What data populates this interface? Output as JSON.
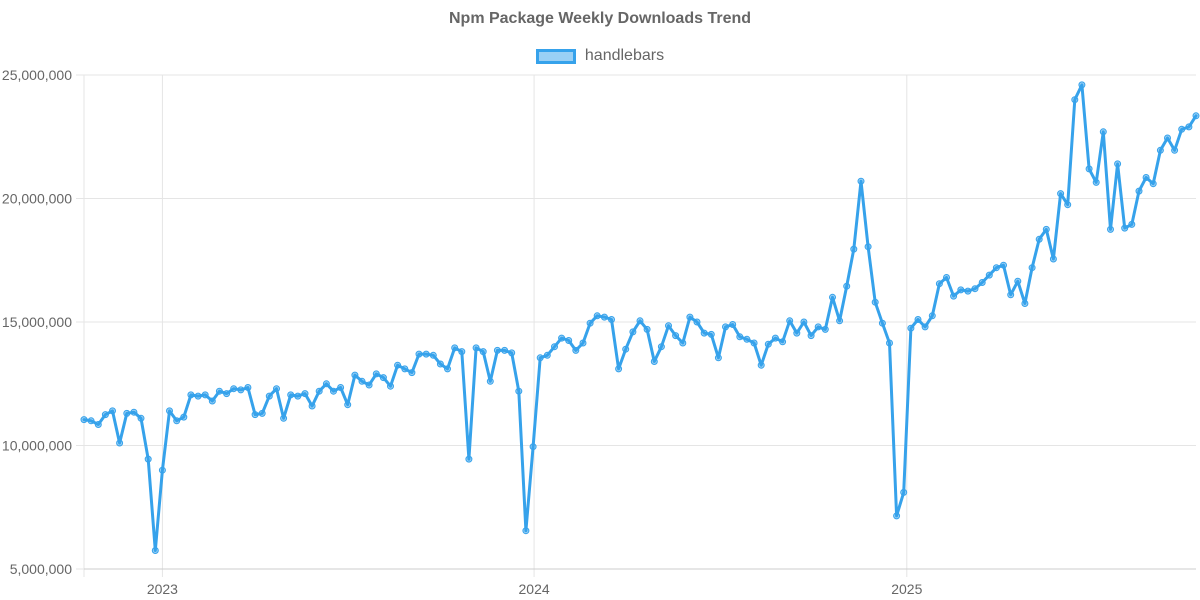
{
  "chart_data": {
    "type": "line",
    "title": "Npm Package Weekly Downloads Trend",
    "legend": {
      "placement": "top"
    },
    "grid": true,
    "colors": {
      "line": "#36a2eb",
      "fill": "rgba(54,162,235,0.5)",
      "grid": "#e5e5e5",
      "text": "#666666"
    },
    "x_axis": {
      "type": "time",
      "range": [
        "2022-10-16",
        "2025-09-21"
      ],
      "ticks": [
        {
          "value": "2023-01-01",
          "label": "2023"
        },
        {
          "value": "2024-01-01",
          "label": "2024"
        },
        {
          "value": "2025-01-01",
          "label": "2025"
        }
      ]
    },
    "y_axis": {
      "range": [
        5000000,
        25000000
      ],
      "ticks": [
        {
          "value": 5000000,
          "label": "5,000,000"
        },
        {
          "value": 10000000,
          "label": "10,000,000"
        },
        {
          "value": 15000000,
          "label": "15,000,000"
        },
        {
          "value": 20000000,
          "label": "20,000,000"
        },
        {
          "value": 25000000,
          "label": "25,000,000"
        }
      ]
    },
    "series": [
      {
        "name": "handlebars",
        "points": [
          {
            "x": "2022-10-16",
            "y": 11050000
          },
          {
            "x": "2022-10-23",
            "y": 11000000
          },
          {
            "x": "2022-10-30",
            "y": 10850000
          },
          {
            "x": "2022-11-06",
            "y": 11250000
          },
          {
            "x": "2022-11-13",
            "y": 11400000
          },
          {
            "x": "2022-11-20",
            "y": 10100000
          },
          {
            "x": "2022-11-27",
            "y": 11300000
          },
          {
            "x": "2022-12-04",
            "y": 11350000
          },
          {
            "x": "2022-12-11",
            "y": 11100000
          },
          {
            "x": "2022-12-18",
            "y": 9450000
          },
          {
            "x": "2022-12-25",
            "y": 5750000
          },
          {
            "x": "2023-01-01",
            "y": 9000000
          },
          {
            "x": "2023-01-08",
            "y": 11400000
          },
          {
            "x": "2023-01-15",
            "y": 11000000
          },
          {
            "x": "2023-01-22",
            "y": 11150000
          },
          {
            "x": "2023-01-29",
            "y": 12050000
          },
          {
            "x": "2023-02-05",
            "y": 12000000
          },
          {
            "x": "2023-02-12",
            "y": 12050000
          },
          {
            "x": "2023-02-19",
            "y": 11800000
          },
          {
            "x": "2023-02-26",
            "y": 12200000
          },
          {
            "x": "2023-03-05",
            "y": 12100000
          },
          {
            "x": "2023-03-12",
            "y": 12300000
          },
          {
            "x": "2023-03-19",
            "y": 12250000
          },
          {
            "x": "2023-03-26",
            "y": 12350000
          },
          {
            "x": "2023-04-02",
            "y": 11250000
          },
          {
            "x": "2023-04-09",
            "y": 11300000
          },
          {
            "x": "2023-04-16",
            "y": 12000000
          },
          {
            "x": "2023-04-23",
            "y": 12300000
          },
          {
            "x": "2023-04-30",
            "y": 11100000
          },
          {
            "x": "2023-05-07",
            "y": 12050000
          },
          {
            "x": "2023-05-14",
            "y": 12000000
          },
          {
            "x": "2023-05-21",
            "y": 12100000
          },
          {
            "x": "2023-05-28",
            "y": 11600000
          },
          {
            "x": "2023-06-04",
            "y": 12200000
          },
          {
            "x": "2023-06-11",
            "y": 12500000
          },
          {
            "x": "2023-06-18",
            "y": 12200000
          },
          {
            "x": "2023-06-25",
            "y": 12350000
          },
          {
            "x": "2023-07-02",
            "y": 11650000
          },
          {
            "x": "2023-07-09",
            "y": 12850000
          },
          {
            "x": "2023-07-16",
            "y": 12600000
          },
          {
            "x": "2023-07-23",
            "y": 12450000
          },
          {
            "x": "2023-07-30",
            "y": 12900000
          },
          {
            "x": "2023-08-06",
            "y": 12750000
          },
          {
            "x": "2023-08-13",
            "y": 12400000
          },
          {
            "x": "2023-08-20",
            "y": 13250000
          },
          {
            "x": "2023-08-27",
            "y": 13100000
          },
          {
            "x": "2023-09-03",
            "y": 12950000
          },
          {
            "x": "2023-09-10",
            "y": 13700000
          },
          {
            "x": "2023-09-17",
            "y": 13700000
          },
          {
            "x": "2023-09-24",
            "y": 13650000
          },
          {
            "x": "2023-10-01",
            "y": 13300000
          },
          {
            "x": "2023-10-08",
            "y": 13100000
          },
          {
            "x": "2023-10-15",
            "y": 13950000
          },
          {
            "x": "2023-10-22",
            "y": 13800000
          },
          {
            "x": "2023-10-29",
            "y": 9450000
          },
          {
            "x": "2023-11-05",
            "y": 13950000
          },
          {
            "x": "2023-11-12",
            "y": 13800000
          },
          {
            "x": "2023-11-19",
            "y": 12600000
          },
          {
            "x": "2023-11-26",
            "y": 13850000
          },
          {
            "x": "2023-12-03",
            "y": 13850000
          },
          {
            "x": "2023-12-10",
            "y": 13750000
          },
          {
            "x": "2023-12-17",
            "y": 12200000
          },
          {
            "x": "2023-12-24",
            "y": 6550000
          },
          {
            "x": "2023-12-31",
            "y": 9950000
          },
          {
            "x": "2024-01-07",
            "y": 13550000
          },
          {
            "x": "2024-01-14",
            "y": 13650000
          },
          {
            "x": "2024-01-21",
            "y": 14000000
          },
          {
            "x": "2024-01-28",
            "y": 14350000
          },
          {
            "x": "2024-02-04",
            "y": 14250000
          },
          {
            "x": "2024-02-11",
            "y": 13850000
          },
          {
            "x": "2024-02-18",
            "y": 14150000
          },
          {
            "x": "2024-02-25",
            "y": 14950000
          },
          {
            "x": "2024-03-03",
            "y": 15250000
          },
          {
            "x": "2024-03-10",
            "y": 15200000
          },
          {
            "x": "2024-03-17",
            "y": 15100000
          },
          {
            "x": "2024-03-24",
            "y": 13100000
          },
          {
            "x": "2024-03-31",
            "y": 13900000
          },
          {
            "x": "2024-04-07",
            "y": 14600000
          },
          {
            "x": "2024-04-14",
            "y": 15050000
          },
          {
            "x": "2024-04-21",
            "y": 14700000
          },
          {
            "x": "2024-04-28",
            "y": 13400000
          },
          {
            "x": "2024-05-05",
            "y": 14000000
          },
          {
            "x": "2024-05-12",
            "y": 14850000
          },
          {
            "x": "2024-05-19",
            "y": 14450000
          },
          {
            "x": "2024-05-26",
            "y": 14150000
          },
          {
            "x": "2024-06-02",
            "y": 15200000
          },
          {
            "x": "2024-06-09",
            "y": 15000000
          },
          {
            "x": "2024-06-16",
            "y": 14550000
          },
          {
            "x": "2024-06-23",
            "y": 14500000
          },
          {
            "x": "2024-06-30",
            "y": 13550000
          },
          {
            "x": "2024-07-07",
            "y": 14800000
          },
          {
            "x": "2024-07-14",
            "y": 14900000
          },
          {
            "x": "2024-07-21",
            "y": 14400000
          },
          {
            "x": "2024-07-28",
            "y": 14300000
          },
          {
            "x": "2024-08-04",
            "y": 14150000
          },
          {
            "x": "2024-08-11",
            "y": 13250000
          },
          {
            "x": "2024-08-18",
            "y": 14100000
          },
          {
            "x": "2024-08-25",
            "y": 14350000
          },
          {
            "x": "2024-09-01",
            "y": 14200000
          },
          {
            "x": "2024-09-08",
            "y": 15050000
          },
          {
            "x": "2024-09-15",
            "y": 14550000
          },
          {
            "x": "2024-09-22",
            "y": 15000000
          },
          {
            "x": "2024-09-29",
            "y": 14450000
          },
          {
            "x": "2024-10-06",
            "y": 14800000
          },
          {
            "x": "2024-10-13",
            "y": 14700000
          },
          {
            "x": "2024-10-20",
            "y": 16000000
          },
          {
            "x": "2024-10-27",
            "y": 15050000
          },
          {
            "x": "2024-11-03",
            "y": 16450000
          },
          {
            "x": "2024-11-10",
            "y": 17950000
          },
          {
            "x": "2024-11-17",
            "y": 20700000
          },
          {
            "x": "2024-11-24",
            "y": 18050000
          },
          {
            "x": "2024-12-01",
            "y": 15800000
          },
          {
            "x": "2024-12-08",
            "y": 14950000
          },
          {
            "x": "2024-12-15",
            "y": 14150000
          },
          {
            "x": "2024-12-22",
            "y": 7150000
          },
          {
            "x": "2024-12-29",
            "y": 8100000
          },
          {
            "x": "2025-01-05",
            "y": 14750000
          },
          {
            "x": "2025-01-12",
            "y": 15100000
          },
          {
            "x": "2025-01-19",
            "y": 14800000
          },
          {
            "x": "2025-01-26",
            "y": 15250000
          },
          {
            "x": "2025-02-02",
            "y": 16550000
          },
          {
            "x": "2025-02-09",
            "y": 16800000
          },
          {
            "x": "2025-02-16",
            "y": 16050000
          },
          {
            "x": "2025-02-23",
            "y": 16300000
          },
          {
            "x": "2025-03-02",
            "y": 16250000
          },
          {
            "x": "2025-03-09",
            "y": 16350000
          },
          {
            "x": "2025-03-16",
            "y": 16600000
          },
          {
            "x": "2025-03-23",
            "y": 16900000
          },
          {
            "x": "2025-03-30",
            "y": 17200000
          },
          {
            "x": "2025-04-06",
            "y": 17300000
          },
          {
            "x": "2025-04-13",
            "y": 16100000
          },
          {
            "x": "2025-04-20",
            "y": 16650000
          },
          {
            "x": "2025-04-27",
            "y": 15750000
          },
          {
            "x": "2025-05-04",
            "y": 17200000
          },
          {
            "x": "2025-05-11",
            "y": 18350000
          },
          {
            "x": "2025-05-18",
            "y": 18750000
          },
          {
            "x": "2025-05-25",
            "y": 17550000
          },
          {
            "x": "2025-06-01",
            "y": 20200000
          },
          {
            "x": "2025-06-08",
            "y": 19750000
          },
          {
            "x": "2025-06-15",
            "y": 24000000
          },
          {
            "x": "2025-06-22",
            "y": 24600000
          },
          {
            "x": "2025-06-29",
            "y": 21200000
          },
          {
            "x": "2025-07-06",
            "y": 20650000
          },
          {
            "x": "2025-07-13",
            "y": 22700000
          },
          {
            "x": "2025-07-20",
            "y": 18750000
          },
          {
            "x": "2025-07-27",
            "y": 21400000
          },
          {
            "x": "2025-08-03",
            "y": 18800000
          },
          {
            "x": "2025-08-10",
            "y": 18950000
          },
          {
            "x": "2025-08-17",
            "y": 20300000
          },
          {
            "x": "2025-08-24",
            "y": 20850000
          },
          {
            "x": "2025-08-31",
            "y": 20600000
          },
          {
            "x": "2025-09-07",
            "y": 21950000
          },
          {
            "x": "2025-09-14",
            "y": 22450000
          },
          {
            "x": "2025-09-21",
            "y": 21950000
          },
          {
            "x": "2025-09-28",
            "y": 22800000
          },
          {
            "x": "2025-10-05",
            "y": 22900000
          },
          {
            "x": "2025-10-12",
            "y": 23350000
          }
        ]
      }
    ]
  }
}
